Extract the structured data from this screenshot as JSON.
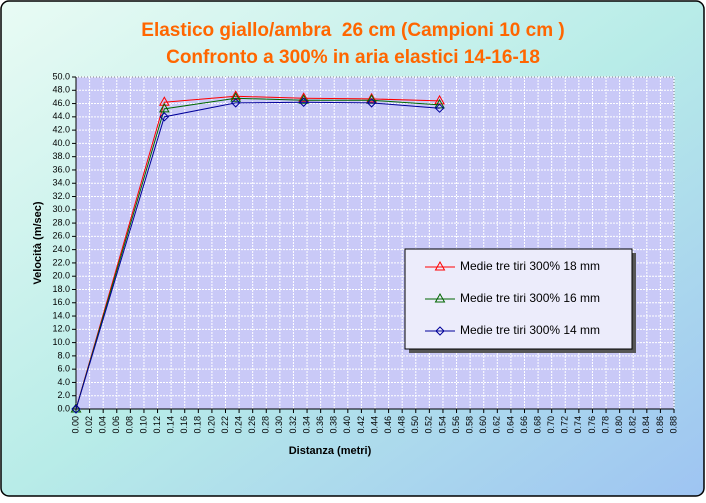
{
  "chart_data": {
    "type": "line",
    "title": [
      "Elastico giallo/ambra  26 cm (Campioni 10 cm )",
      "Confronto a 300% in aria elastici 14-16-18"
    ],
    "x_label": "Distanza (metri)",
    "y_label": "Velocità (m/sec)",
    "x": [
      0,
      0.13,
      0.235,
      0.335,
      0.435,
      0.535
    ],
    "series": [
      {
        "name": "Medie tre tiri 300% 18 mm",
        "color": "#ff0000",
        "marker": "triangle",
        "values": [
          0,
          46.2,
          47.1,
          46.8,
          46.7,
          46.4
        ]
      },
      {
        "name": "Medie tre tiri 300% 16 mm",
        "color": "#006600",
        "marker": "triangle",
        "values": [
          0,
          45.2,
          46.8,
          46.5,
          46.5,
          45.8
        ]
      },
      {
        "name": "Medie tre tiri 300% 14 mm",
        "color": "#000099",
        "marker": "diamond",
        "values": [
          0,
          44.0,
          46.1,
          46.2,
          46.1,
          45.3
        ]
      }
    ],
    "xlim": [
      0,
      0.88
    ],
    "ylim": [
      0,
      50
    ],
    "xticks": [
      {
        "value": 0,
        "label": "0.00"
      },
      {
        "value": 0.02,
        "label": "0.02"
      },
      {
        "value": 0.04,
        "label": "0.04"
      },
      {
        "value": 0.06,
        "label": "0.06"
      },
      {
        "value": 0.08,
        "label": "0.08"
      },
      {
        "value": 0.1,
        "label": "0.10"
      },
      {
        "value": 0.12,
        "label": "0.12"
      },
      {
        "value": 0.14,
        "label": "0.14"
      },
      {
        "value": 0.16,
        "label": "0.16"
      },
      {
        "value": 0.18,
        "label": "0.18"
      },
      {
        "value": 0.2,
        "label": "0.20"
      },
      {
        "value": 0.22,
        "label": "0.22"
      },
      {
        "value": 0.24,
        "label": "0.24"
      },
      {
        "value": 0.26,
        "label": "0.26"
      },
      {
        "value": 0.28,
        "label": "0.28"
      },
      {
        "value": 0.3,
        "label": "0.30"
      },
      {
        "value": 0.32,
        "label": "0.32"
      },
      {
        "value": 0.34,
        "label": "0.34"
      },
      {
        "value": 0.36,
        "label": "0.36"
      },
      {
        "value": 0.38,
        "label": "0.38"
      },
      {
        "value": 0.4,
        "label": "0.40"
      },
      {
        "value": 0.42,
        "label": "0.42"
      },
      {
        "value": 0.44,
        "label": "0.44"
      },
      {
        "value": 0.46,
        "label": "0.46"
      },
      {
        "value": 0.48,
        "label": "0.48"
      },
      {
        "value": 0.5,
        "label": "0.50"
      },
      {
        "value": 0.52,
        "label": "0.52"
      },
      {
        "value": 0.54,
        "label": "0.54"
      },
      {
        "value": 0.56,
        "label": "0.56"
      },
      {
        "value": 0.58,
        "label": "0.58"
      },
      {
        "value": 0.6,
        "label": "0.60"
      },
      {
        "value": 0.62,
        "label": "0.62"
      },
      {
        "value": 0.64,
        "label": "0.64"
      },
      {
        "value": 0.66,
        "label": "0.66"
      },
      {
        "value": 0.68,
        "label": "0.68"
      },
      {
        "value": 0.7,
        "label": "0.70"
      },
      {
        "value": 0.72,
        "label": "0.72"
      },
      {
        "value": 0.74,
        "label": "0.74"
      },
      {
        "value": 0.76,
        "label": "0.76"
      },
      {
        "value": 0.78,
        "label": "0.78"
      },
      {
        "value": 0.8,
        "label": "0.80"
      },
      {
        "value": 0.82,
        "label": "0.82"
      },
      {
        "value": 0.84,
        "label": "0.84"
      },
      {
        "value": 0.86,
        "label": "0.86"
      },
      {
        "value": 0.88,
        "label": "0.88"
      }
    ],
    "yticks": [
      {
        "value": 0,
        "label": "0.0"
      },
      {
        "value": 2,
        "label": "2.0"
      },
      {
        "value": 4,
        "label": "4.0"
      },
      {
        "value": 6,
        "label": "6.0"
      },
      {
        "value": 8,
        "label": "8.0"
      },
      {
        "value": 10,
        "label": "10.0"
      },
      {
        "value": 12,
        "label": "12.0"
      },
      {
        "value": 14,
        "label": "14.0"
      },
      {
        "value": 16,
        "label": "16.0"
      },
      {
        "value": 18,
        "label": "18.0"
      },
      {
        "value": 20,
        "label": "20.0"
      },
      {
        "value": 22,
        "label": "22.0"
      },
      {
        "value": 24,
        "label": "24.0"
      },
      {
        "value": 26,
        "label": "26.0"
      },
      {
        "value": 28,
        "label": "28.0"
      },
      {
        "value": 30,
        "label": "30.0"
      },
      {
        "value": 32,
        "label": "32.0"
      },
      {
        "value": 34,
        "label": "34.0"
      },
      {
        "value": 36,
        "label": "36.0"
      },
      {
        "value": 38,
        "label": "38.0"
      },
      {
        "value": 40,
        "label": "40.0"
      },
      {
        "value": 42,
        "label": "42.0"
      },
      {
        "value": 44,
        "label": "44.0"
      },
      {
        "value": 46,
        "label": "46.0"
      },
      {
        "value": 48,
        "label": "48.0"
      },
      {
        "value": 50,
        "label": "50.0"
      }
    ],
    "grid": true,
    "legend": "right"
  }
}
